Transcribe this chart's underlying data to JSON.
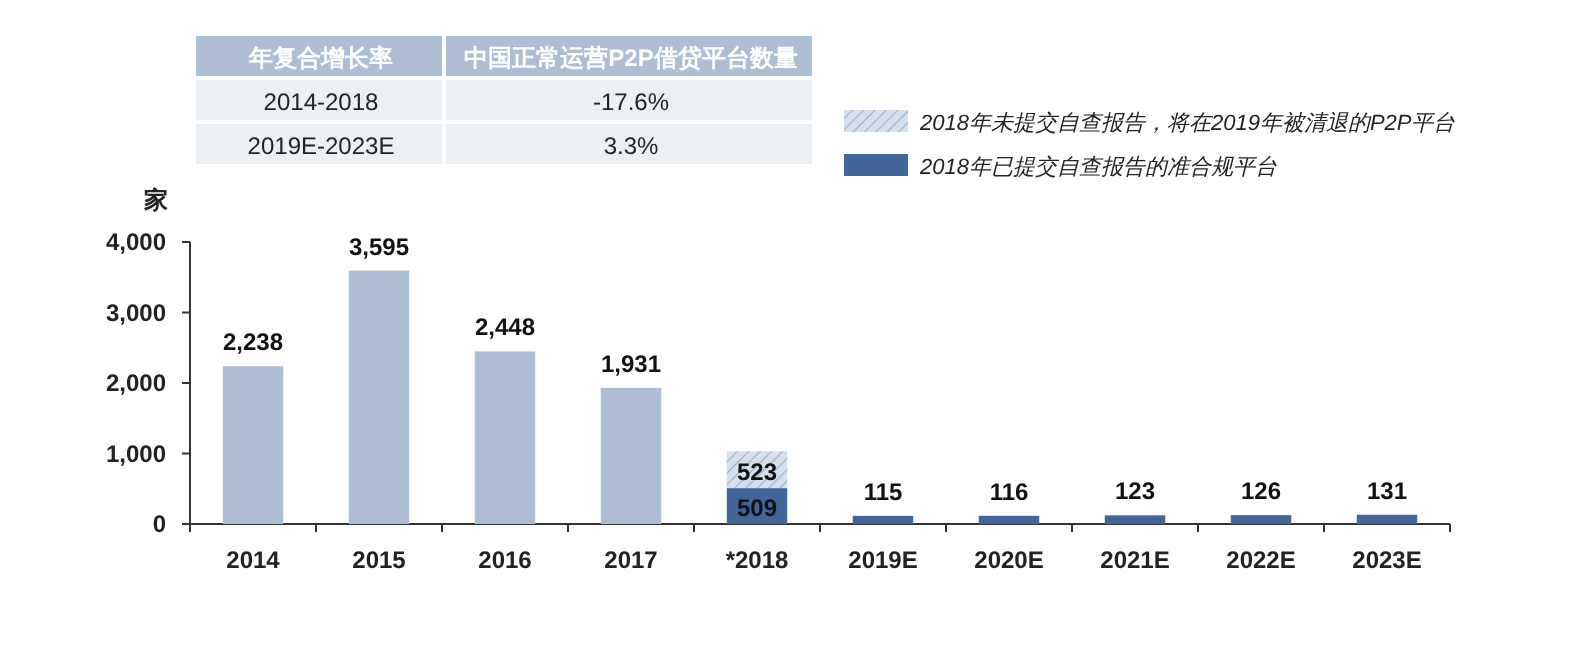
{
  "chart_data": {
    "type": "bar",
    "stacked": true,
    "ylabel": "家",
    "categories": [
      "2014",
      "2015",
      "2016",
      "2017",
      "*2018",
      "2019E",
      "2020E",
      "2021E",
      "2022E",
      "2023E"
    ],
    "series": [
      {
        "color": "#adbdd3",
        "values": [
          2238,
          3595,
          2448,
          1931,
          null,
          null,
          null,
          null,
          null,
          null
        ],
        "value_labels": [
          "2,238",
          "3,595",
          "2,448",
          "1,931",
          null,
          null,
          null,
          null,
          null,
          null
        ]
      },
      {
        "name": "2018年已提交自查报告的准合规平台",
        "color": "#41679a",
        "values": [
          null,
          null,
          null,
          null,
          509,
          115,
          116,
          123,
          126,
          131
        ],
        "value_labels": [
          null,
          null,
          null,
          null,
          "509",
          "115",
          "116",
          "123",
          "126",
          "131"
        ]
      },
      {
        "name": "2018年未提交自查报告，将在2019年被清退的P2P平台",
        "color": "#d6e0ec",
        "values": [
          null,
          null,
          null,
          null,
          523,
          null,
          null,
          null,
          null,
          null
        ],
        "value_labels": [
          null,
          null,
          null,
          null,
          "523",
          null,
          null,
          null,
          null,
          null
        ]
      }
    ],
    "ylim": [
      0,
      4000
    ],
    "yticks": [
      0,
      {
        "value": 1000,
        "label": "1,000"
      },
      {
        "value": 2000,
        "label": "2,000"
      },
      {
        "value": 3000,
        "label": "3,000"
      },
      {
        "value": 4000,
        "label": "4,000"
      }
    ],
    "legend": "top right",
    "grid": false,
    "annotations": [
      "年复合增长率",
      "中国正常运营P2P借贷平台数量",
      "2014-2018",
      "-17.6%",
      "2019E-2023E",
      "3.3%"
    ]
  }
}
